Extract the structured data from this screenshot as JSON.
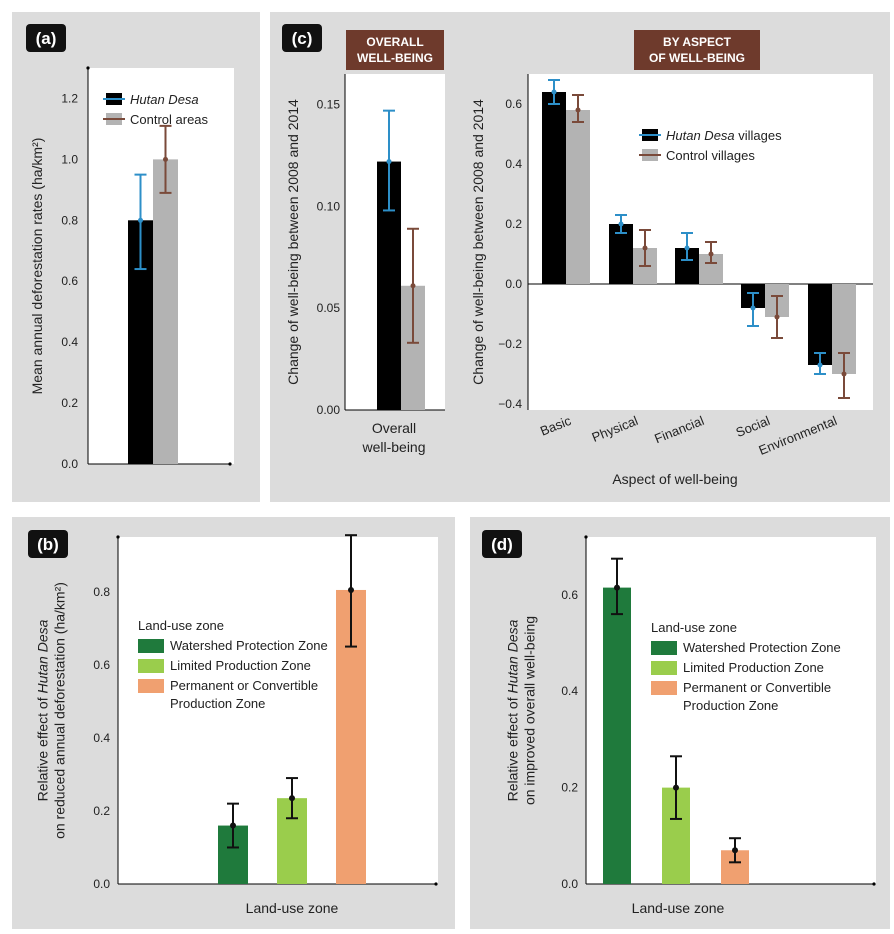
{
  "panels": {
    "a": {
      "label": "(a)"
    },
    "b": {
      "label": "(b)"
    },
    "c": {
      "label": "(c)",
      "banner_overall": [
        "OVERALL",
        "WELL-BEING"
      ],
      "banner_aspect": [
        "BY ASPECT",
        "OF WELL-BEING"
      ]
    },
    "d": {
      "label": "(d)"
    }
  },
  "colors": {
    "hutan": "#000000",
    "control": "#b3b3b3",
    "err_hutan": "#2d8fc8",
    "err_control": "#7a4a3a",
    "watershed": "#1f7a3c",
    "limited": "#9acd4c",
    "permanent": "#f0a070",
    "banner": "#6e3a2c",
    "panel_bg": "#dcdcdc"
  },
  "chart_data": [
    {
      "id": "a",
      "type": "bar",
      "ylabel": "Mean annual deforestation rates (ha/km²)",
      "ylim": [
        0,
        1.3
      ],
      "yticks": [
        "0.0",
        "0.2",
        "0.4",
        "0.6",
        "0.8",
        "1.0",
        "1.2"
      ],
      "series": [
        {
          "name": "Hutan Desa",
          "value": 0.8,
          "err": [
            0.64,
            0.95
          ]
        },
        {
          "name": "Control areas",
          "value": 1.0,
          "err": [
            0.89,
            1.11
          ]
        }
      ],
      "legend": [
        {
          "name": "Hutan Desa",
          "italic": true
        },
        {
          "name": "Control areas",
          "italic": false
        }
      ]
    },
    {
      "id": "c1",
      "type": "bar",
      "ylabel": "Change of well-being between 2008 and 2014",
      "ylim": [
        0,
        0.165
      ],
      "yticks": [
        "0.00",
        "0.05",
        "0.10",
        "0.15"
      ],
      "xlabel": [
        "Overall",
        "well-being"
      ],
      "series": [
        {
          "name": "Hutan Desa villages",
          "value": 0.122,
          "err": [
            0.098,
            0.147
          ]
        },
        {
          "name": "Control villages",
          "value": 0.061,
          "err": [
            0.033,
            0.089
          ]
        }
      ]
    },
    {
      "id": "c2",
      "type": "bar",
      "ylabel": "Change of well-being between 2008 and 2014",
      "xlabel": "Aspect of well-being",
      "ylim": [
        -0.42,
        0.7
      ],
      "yticks": [
        "−0.4",
        "−0.2",
        "0.0",
        "0.2",
        "0.4",
        "0.6"
      ],
      "categories": [
        "Basic",
        "Physical",
        "Financial",
        "Social",
        "Environmental"
      ],
      "series": [
        {
          "name": "Hutan Desa villages",
          "values": [
            0.64,
            0.2,
            0.12,
            -0.08,
            -0.27
          ],
          "err": [
            [
              0.6,
              0.68
            ],
            [
              0.17,
              0.23
            ],
            [
              0.08,
              0.17
            ],
            [
              -0.14,
              -0.03
            ],
            [
              -0.3,
              -0.23
            ]
          ]
        },
        {
          "name": "Control villages",
          "values": [
            0.58,
            0.12,
            0.1,
            -0.11,
            -0.3
          ],
          "err": [
            [
              0.54,
              0.63
            ],
            [
              0.06,
              0.18
            ],
            [
              0.07,
              0.14
            ],
            [
              -0.18,
              -0.04
            ],
            [
              -0.38,
              -0.23
            ]
          ]
        }
      ],
      "legend": [
        {
          "name": "Hutan Desa",
          "suffix": " villages",
          "italic": true
        },
        {
          "name": "Control villages",
          "suffix": "",
          "italic": false
        }
      ]
    },
    {
      "id": "b",
      "type": "bar",
      "ylabel": [
        "Relative effect of Hutan Desa",
        "on reduced annual deforestation (ha/km²)"
      ],
      "xlabel": "Land-use zone",
      "ylim": [
        0,
        0.95
      ],
      "yticks": [
        "0.0",
        "0.2",
        "0.4",
        "0.6",
        "0.8"
      ],
      "legend_title": "Land-use zone",
      "categories": [
        "Watershed Protection Zone",
        "Limited Production Zone",
        "Permanent or Convertible Production Zone"
      ],
      "legend_lines": [
        [
          "Watershed Protection Zone"
        ],
        [
          "Limited Production Zone"
        ],
        [
          "Permanent or Convertible",
          "Production Zone"
        ]
      ],
      "values": [
        0.16,
        0.235,
        0.805
      ],
      "err": [
        [
          0.1,
          0.22
        ],
        [
          0.18,
          0.29
        ],
        [
          0.65,
          0.955
        ]
      ]
    },
    {
      "id": "d",
      "type": "bar",
      "ylabel": [
        "Relative effect of Hutan Desa",
        "on improved overall well-being"
      ],
      "xlabel": "Land-use zone",
      "ylim": [
        0,
        0.72
      ],
      "yticks": [
        "0.0",
        "0.2",
        "0.4",
        "0.6"
      ],
      "legend_title": "Land-use zone",
      "categories": [
        "Watershed Protection Zone",
        "Limited Production Zone",
        "Permanent or Convertible Production Zone"
      ],
      "legend_lines": [
        [
          "Watershed Protection Zone"
        ],
        [
          "Limited Production Zone"
        ],
        [
          "Permanent or Convertible",
          "Production Zone"
        ]
      ],
      "values": [
        0.615,
        0.2,
        0.07
      ],
      "err": [
        [
          0.56,
          0.675
        ],
        [
          0.135,
          0.265
        ],
        [
          0.045,
          0.095
        ]
      ]
    }
  ]
}
